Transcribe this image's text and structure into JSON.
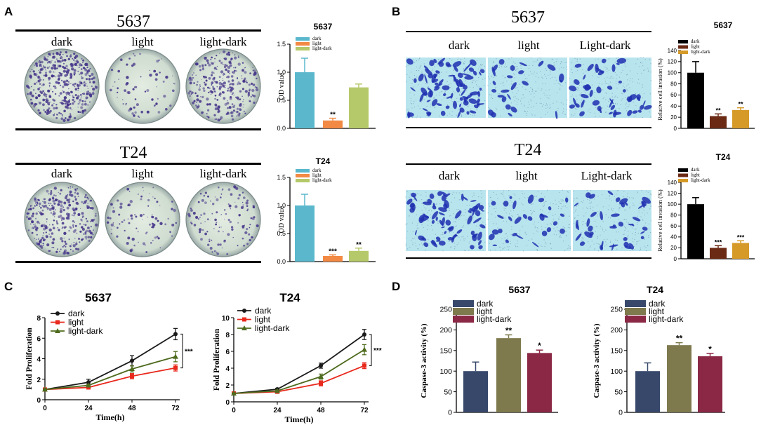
{
  "colors": {
    "dark_bar_A": "#5bb8cc",
    "light_bar_A": "#f28a45",
    "lightdark_bar_A": "#b5c96a",
    "dark_bar_B": "#000000",
    "light_bar_B": "#6b2a14",
    "lightdark_bar_B": "#d69a28",
    "line_dark": "#1a1a1a",
    "line_light": "#e8291c",
    "line_lightdark": "#4e6b1e",
    "dark_bar_D": "#37486b",
    "light_bar_D": "#7e7a4e",
    "lightdark_bar_D": "#8a2845",
    "plate_bg": "#d8e4d6",
    "plate_colony": "#4a3a8c",
    "field_bg": "#b8e4ee",
    "field_cell": "#2030b0"
  },
  "panels": {
    "A": {
      "letter": "A",
      "label_dark": "dark",
      "label_light": "light",
      "label_lightdark": "light-dark",
      "title_5637": "5637",
      "title_t24": "T24"
    },
    "B": {
      "letter": "B",
      "label_dark": "dark",
      "label_light": "light",
      "label_lightdark": "Light-dark",
      "title_5637": "5637",
      "title_t24": "T24"
    },
    "C": {
      "letter": "C"
    },
    "D": {
      "letter": "D"
    }
  },
  "chart_data": [
    {
      "id": "A-5637",
      "type": "bar",
      "title": "5637",
      "ylabel": "OD value",
      "categories": [
        "dark",
        "light",
        "light-dark"
      ],
      "values": [
        1.0,
        0.14,
        0.73
      ],
      "errors": [
        0.25,
        0.04,
        0.06
      ],
      "annotations": [
        "",
        "**",
        ""
      ],
      "ylim": [
        0,
        1.5
      ],
      "yticks": [
        "0.0",
        "0.5",
        "1.0",
        "1.5"
      ],
      "legend": [
        "dark",
        "light",
        "light-dark"
      ]
    },
    {
      "id": "A-T24",
      "type": "bar",
      "title": "T24",
      "ylabel": "OD value",
      "categories": [
        "dark",
        "light",
        "light-dark"
      ],
      "values": [
        1.0,
        0.1,
        0.19
      ],
      "errors": [
        0.2,
        0.02,
        0.05
      ],
      "annotations": [
        "",
        "***",
        "**"
      ],
      "ylim": [
        0,
        1.5
      ],
      "yticks": [
        "0.0",
        "0.5",
        "1.0",
        "1.5"
      ],
      "legend": [
        "dark",
        "light",
        "light-dark"
      ]
    },
    {
      "id": "B-5637",
      "type": "bar",
      "title": "5637",
      "ylabel": "Relative cell invasion (%)",
      "categories": [
        "dark",
        "light",
        "light-dark"
      ],
      "values": [
        100,
        22,
        33
      ],
      "errors": [
        20,
        4,
        4
      ],
      "annotations": [
        "",
        "**",
        "**"
      ],
      "ylim": [
        0,
        140
      ],
      "yticks": [
        "0",
        "20",
        "40",
        "60",
        "80",
        "100",
        "120",
        "140"
      ],
      "legend": [
        "dark",
        "light",
        "light-dark"
      ]
    },
    {
      "id": "B-T24",
      "type": "bar",
      "title": "T24",
      "ylabel": "Relative cell invasion (%)",
      "categories": [
        "dark",
        "light",
        "light-dark"
      ],
      "values": [
        100,
        20,
        29
      ],
      "errors": [
        12,
        4,
        4
      ],
      "annotations": [
        "",
        "***",
        "***"
      ],
      "ylim": [
        0,
        140
      ],
      "yticks": [
        "0",
        "20",
        "40",
        "60",
        "80",
        "100",
        "120",
        "140"
      ],
      "legend": [
        "dark",
        "light",
        "light-dark"
      ]
    },
    {
      "id": "C-5637",
      "type": "line",
      "title": "5637",
      "xlabel": "Time(h)",
      "ylabel": "Fold  Proliferation",
      "x": [
        0,
        24,
        48,
        72
      ],
      "xticks": [
        "0",
        "24",
        "48",
        "72"
      ],
      "ylim": [
        0,
        8
      ],
      "yticks": [
        "0",
        "2",
        "4",
        "6",
        "8"
      ],
      "sig": "***",
      "series": [
        {
          "name": "dark",
          "values": [
            1.0,
            1.7,
            3.8,
            6.4
          ],
          "errors": [
            0.05,
            0.3,
            0.5,
            0.55
          ]
        },
        {
          "name": "light",
          "values": [
            1.0,
            1.2,
            2.3,
            3.1
          ],
          "errors": [
            0.05,
            0.1,
            0.25,
            0.3
          ]
        },
        {
          "name": "light-dark",
          "values": [
            1.0,
            1.4,
            3.0,
            4.2
          ],
          "errors": [
            0.05,
            0.1,
            0.3,
            0.5
          ]
        }
      ]
    },
    {
      "id": "C-T24",
      "type": "line",
      "title": "T24",
      "xlabel": "Time(h)",
      "ylabel": "Fold  Proliferation",
      "x": [
        0,
        24,
        48,
        72
      ],
      "xticks": [
        "0",
        "24",
        "48",
        "72"
      ],
      "ylim": [
        0,
        10
      ],
      "yticks": [
        "0",
        "2",
        "4",
        "6",
        "8",
        "10"
      ],
      "sig": "***",
      "series": [
        {
          "name": "dark",
          "values": [
            1.0,
            1.5,
            4.3,
            8.0
          ],
          "errors": [
            0.05,
            0.1,
            0.3,
            0.6
          ]
        },
        {
          "name": "light",
          "values": [
            1.0,
            1.2,
            2.2,
            4.3
          ],
          "errors": [
            0.05,
            0.1,
            0.3,
            0.35
          ]
        },
        {
          "name": "light-dark",
          "values": [
            1.0,
            1.3,
            3.0,
            6.2
          ],
          "errors": [
            0.05,
            0.1,
            0.3,
            0.6
          ]
        }
      ]
    },
    {
      "id": "D-5637",
      "type": "bar",
      "title": "5637",
      "ylabel": "Caspase-3 activity (%)",
      "categories": [
        "dark",
        "light",
        "light-dark"
      ],
      "values": [
        100,
        180,
        144
      ],
      "errors": [
        22,
        8,
        7
      ],
      "annotations": [
        "",
        "**",
        "*"
      ],
      "ylim": [
        0,
        250
      ],
      "yticks": [
        "0",
        "50",
        "100",
        "150",
        "200",
        "250"
      ],
      "legend": [
        "dark",
        "light",
        "light-dark"
      ]
    },
    {
      "id": "D-T24",
      "type": "bar",
      "title": "T24",
      "ylabel": "Caspase-3 activity (%)",
      "categories": [
        "dark",
        "light",
        "light-dark"
      ],
      "values": [
        100,
        163,
        136
      ],
      "errors": [
        20,
        6,
        7
      ],
      "annotations": [
        "",
        "**",
        "*"
      ],
      "ylim": [
        0,
        250
      ],
      "yticks": [
        "0",
        "50",
        "100",
        "150",
        "200",
        "250"
      ],
      "legend": [
        "dark",
        "light",
        "light-dark"
      ]
    }
  ]
}
